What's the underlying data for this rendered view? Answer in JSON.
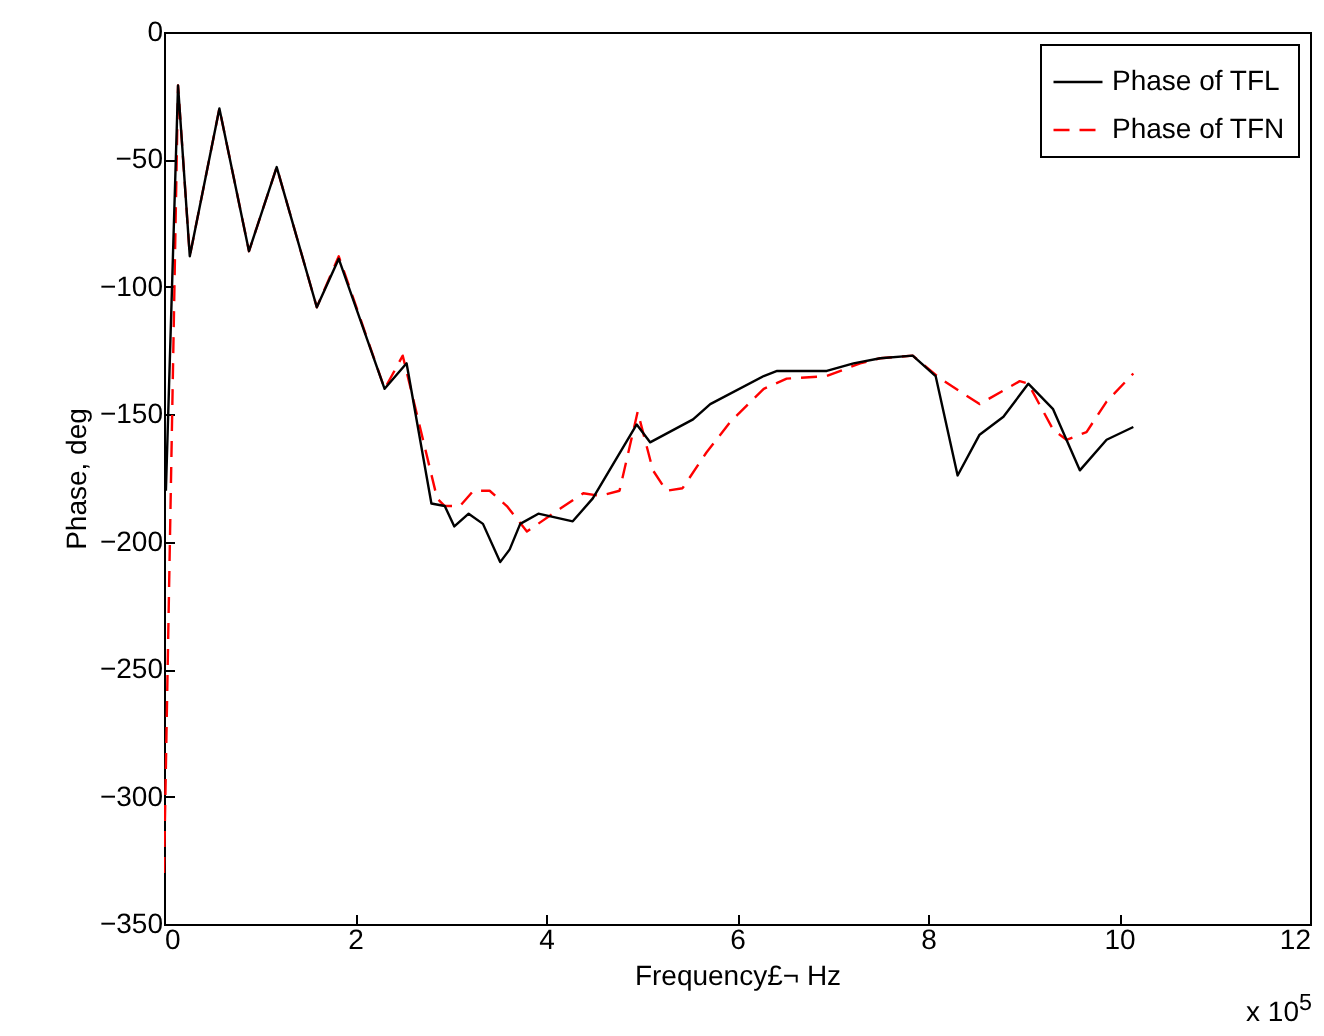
{
  "chart_data": {
    "type": "line",
    "xlabel": "Frequency£¬ Hz",
    "ylabel": "Phase, deg",
    "xlim": [
      0,
      12
    ],
    "xticks": [
      0,
      2,
      4,
      6,
      8,
      10,
      12
    ],
    "ylim": [
      -350,
      0
    ],
    "yticks": [
      -350,
      -300,
      -250,
      -200,
      -150,
      -100,
      -50,
      0
    ],
    "annotations": [
      "x 10$^{5}$"
    ],
    "legend": "top right",
    "grid": false,
    "marker": "none",
    "series": [
      {
        "name": "Phase of TFL",
        "color": "#000000",
        "line_style": "solid",
        "x": [
          0.02,
          0.147,
          0.27,
          0.58,
          0.89,
          1.18,
          1.6,
          1.83,
          2.31,
          2.54,
          2.8,
          2.94,
          3.04,
          3.19,
          3.34,
          3.52,
          3.62,
          3.73,
          3.92,
          4.28,
          4.49,
          4.95,
          5.09,
          5.54,
          5.72,
          6.28,
          6.42,
          6.94,
          7.22,
          7.5,
          7.84,
          8.08,
          8.31,
          8.54,
          8.79,
          9.05,
          9.31,
          9.59,
          9.87,
          10.15
        ],
        "values": [
          -180,
          -21,
          -88,
          -30,
          -86,
          -53,
          -108,
          -89,
          -140,
          -130,
          -185,
          -186,
          -194,
          -189,
          -193,
          -208,
          -203,
          -193,
          -189,
          -192,
          -183,
          -154,
          -161,
          -152,
          -146,
          -135,
          -133,
          -133,
          -130,
          -128,
          -127,
          -135,
          -174,
          -158,
          -151,
          -138,
          -148,
          -172,
          -160,
          -155
        ]
      },
      {
        "name": "Phase of TFN",
        "color": "#ff0000",
        "line_style": "dashed",
        "x": [
          0.0,
          0.147,
          0.27,
          0.58,
          0.89,
          1.18,
          1.6,
          1.83,
          2.31,
          2.5,
          2.86,
          2.94,
          3.1,
          3.24,
          3.41,
          3.59,
          3.8,
          4.15,
          4.39,
          4.57,
          4.77,
          4.96,
          5.12,
          5.26,
          5.43,
          5.68,
          5.93,
          6.28,
          6.52,
          6.94,
          7.29,
          7.5,
          7.84,
          8.13,
          8.54,
          8.96,
          9.05,
          9.31,
          9.45,
          9.66,
          9.87,
          10.15
        ],
        "values": [
          -330,
          -21,
          -88,
          -30,
          -86,
          -53,
          -108,
          -88,
          -140,
          -127,
          -183,
          -186,
          -186,
          -180,
          -180,
          -186,
          -196,
          -187,
          -181,
          -182,
          -180,
          -149,
          -172,
          -180,
          -179,
          -165,
          -153,
          -140,
          -136,
          -135,
          -130,
          -128,
          -127,
          -136,
          -146,
          -137,
          -138,
          -156,
          -160,
          -157,
          -145,
          -134
        ]
      }
    ]
  }
}
